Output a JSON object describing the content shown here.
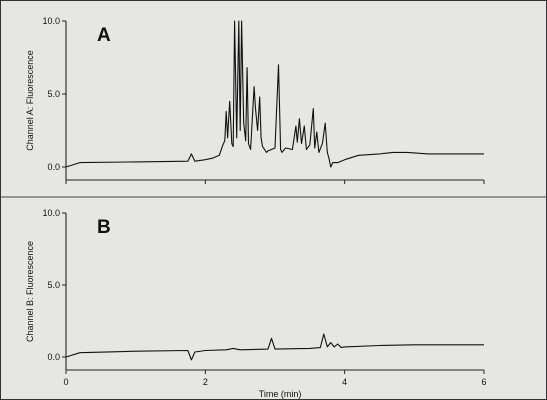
{
  "chart_data": [
    {
      "type": "line",
      "panel_label": "A",
      "ylabel": "Channel A: Fluorescence",
      "xlabel": "",
      "xlim": [
        0,
        6
      ],
      "ylim": [
        0,
        10
      ],
      "yticks": [
        "0.0",
        "5.0",
        "10.0"
      ],
      "xticks": [],
      "grid": false,
      "series": [
        {
          "x": [
            0,
            0.2,
            1.0,
            1.75,
            1.8,
            1.85,
            2.0,
            2.1,
            2.2,
            2.25,
            2.28,
            2.3,
            2.32,
            2.35,
            2.38,
            2.4,
            2.42,
            2.45,
            2.48,
            2.5,
            2.52,
            2.55,
            2.58,
            2.6,
            2.62,
            2.65,
            2.7,
            2.72,
            2.75,
            2.78,
            2.8,
            2.82,
            2.85,
            2.88,
            2.9,
            3.0,
            3.05,
            3.08,
            3.1,
            3.15,
            3.25,
            3.3,
            3.32,
            3.35,
            3.38,
            3.42,
            3.45,
            3.5,
            3.55,
            3.57,
            3.6,
            3.63,
            3.68,
            3.72,
            3.75,
            3.78,
            3.8,
            3.83,
            3.9,
            4.0,
            4.2,
            4.5,
            4.7,
            4.9,
            5.2,
            6.0
          ],
          "y": [
            0.0,
            0.3,
            0.35,
            0.4,
            0.9,
            0.4,
            0.5,
            0.6,
            0.8,
            1.5,
            1.8,
            3.8,
            2.0,
            4.5,
            1.6,
            1.4,
            10.0,
            2.0,
            10.0,
            2.5,
            10.0,
            3.0,
            1.8,
            6.8,
            1.6,
            1.2,
            5.5,
            4.0,
            2.5,
            4.8,
            2.0,
            1.4,
            1.2,
            1.0,
            1.1,
            1.3,
            7.0,
            1.2,
            1.0,
            1.3,
            1.2,
            2.8,
            1.7,
            3.3,
            1.6,
            2.8,
            1.2,
            1.5,
            4.0,
            1.3,
            2.4,
            1.0,
            1.6,
            3.0,
            1.0,
            0.5,
            0.0,
            0.3,
            0.3,
            0.5,
            0.8,
            0.9,
            1.0,
            1.0,
            0.9,
            0.9
          ]
        }
      ]
    },
    {
      "type": "line",
      "panel_label": "B",
      "ylabel": "Channel B: Fluorescence",
      "xlabel": "Time (min)",
      "xlim": [
        0,
        6
      ],
      "ylim": [
        0,
        10
      ],
      "yticks": [
        "0.0",
        "5.0",
        "10.0"
      ],
      "xticks": [
        "0",
        "2",
        "4",
        "6"
      ],
      "grid": false,
      "series": [
        {
          "x": [
            0,
            0.2,
            1.0,
            1.75,
            1.8,
            1.85,
            2.0,
            2.3,
            2.4,
            2.5,
            2.9,
            2.95,
            3.0,
            3.5,
            3.65,
            3.7,
            3.75,
            3.8,
            3.85,
            3.9,
            3.95,
            4.0,
            4.5,
            5.0,
            6.0
          ],
          "y": [
            0.0,
            0.3,
            0.4,
            0.45,
            -0.2,
            0.35,
            0.45,
            0.5,
            0.6,
            0.5,
            0.55,
            1.3,
            0.55,
            0.6,
            0.65,
            1.6,
            0.7,
            1.0,
            0.7,
            0.9,
            0.65,
            0.7,
            0.8,
            0.85,
            0.85
          ]
        }
      ]
    }
  ]
}
